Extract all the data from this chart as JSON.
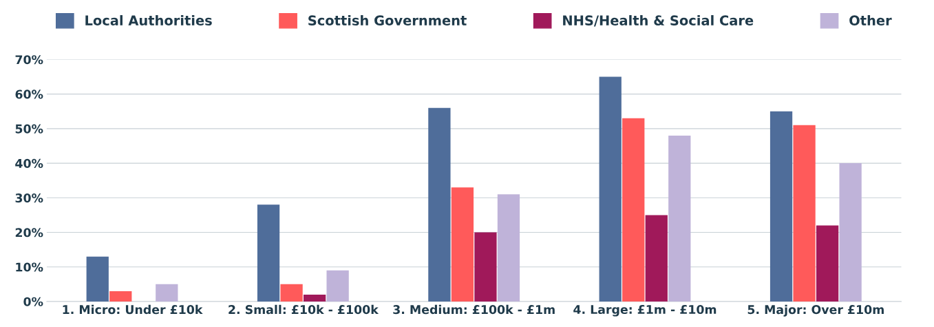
{
  "chart_data": {
    "type": "bar",
    "categories": [
      "1. Micro: Under £10k",
      "2. Small: £10k - £100k",
      "3. Medium: £100k - £1m",
      "4. Large: £1m - £10m",
      "5. Major: Over £10m"
    ],
    "series": [
      {
        "name": "Local Authorities",
        "color": "#4f6d9a",
        "values": [
          13,
          28,
          56,
          65,
          55
        ]
      },
      {
        "name": "Scottish Government",
        "color": "#ff5a5a",
        "values": [
          3,
          5,
          33,
          53,
          51
        ]
      },
      {
        "name": "NHS/Health & Social Care",
        "color": "#a0195a",
        "values": [
          0,
          2,
          20,
          25,
          22
        ]
      },
      {
        "name": "Other",
        "color": "#bfb3d9",
        "values": [
          5,
          9,
          31,
          48,
          40
        ]
      }
    ],
    "ylim": [
      0,
      70
    ],
    "yticks": [
      {
        "value": 0,
        "label": "0%"
      },
      {
        "value": 10,
        "label": "10%"
      },
      {
        "value": 20,
        "label": "20%"
      },
      {
        "value": 30,
        "label": "30%"
      },
      {
        "value": 40,
        "label": "40%"
      },
      {
        "value": 50,
        "label": "50%"
      },
      {
        "value": 60,
        "label": "60%"
      },
      {
        "value": 70,
        "label": "70%"
      }
    ],
    "grid": "y",
    "legend": "top"
  }
}
